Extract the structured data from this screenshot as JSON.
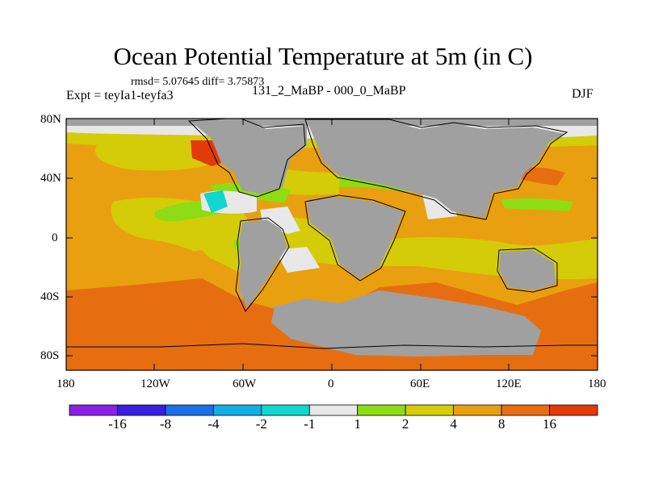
{
  "title": "Ocean Potential Temperature at 5m (in C)",
  "stats_text": "rmsd= 5.07645 diff= 3.75873",
  "expt_text": "Expt = teyIa1-teyfa3",
  "period_text": "131_2_MaBP - 000_0_MaBP",
  "season_text": "DJF",
  "lat_labels": [
    "80N",
    "40N",
    "0",
    "40S",
    "80S"
  ],
  "lon_labels": [
    "180",
    "120W",
    "60W",
    "0",
    "60E",
    "120E",
    "180"
  ],
  "colorbar": {
    "labels": [
      "-16",
      "-8",
      "-4",
      "-2",
      "-1",
      "1",
      "2",
      "4",
      "8",
      "16"
    ],
    "colors": [
      "#8a20e6",
      "#3a1fe0",
      "#1a6fe6",
      "#13aee6",
      "#12d6d0",
      "#e8e8e8",
      "#8ddc14",
      "#d4cc08",
      "#e8a010",
      "#e66e10",
      "#e23a08"
    ]
  },
  "colors": {
    "land": "#a0a0a0",
    "coast": "#000000"
  }
}
